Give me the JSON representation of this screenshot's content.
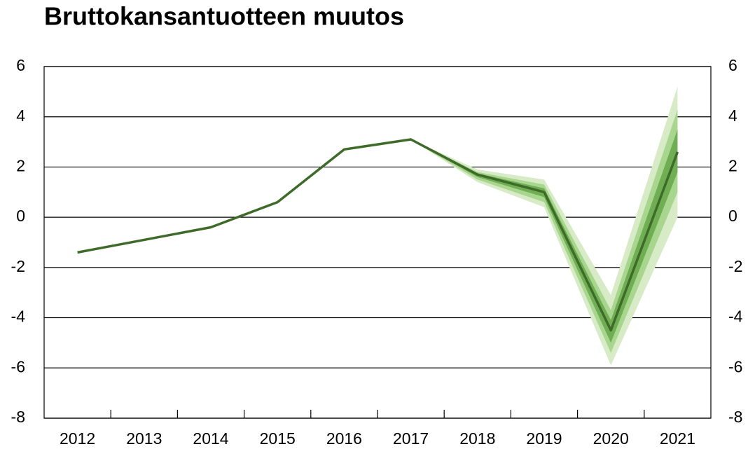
{
  "chart_data": {
    "type": "line",
    "title": "Bruttokansantuotteen muutos",
    "categories": [
      "2012",
      "2013",
      "2014",
      "2015",
      "2016",
      "2017",
      "2018",
      "2019",
      "2020",
      "2021"
    ],
    "series": [
      {
        "color": "#3f6b2a",
        "values": [
          -1.4,
          -0.9,
          -0.4,
          0.6,
          2.7,
          3.1,
          1.7,
          1.0,
          -4.5,
          2.6
        ]
      }
    ],
    "bands": [
      {
        "color": "#d6ebc6",
        "lower": [
          null,
          null,
          null,
          null,
          null,
          3.1,
          1.4,
          0.4,
          -5.9,
          0.0
        ],
        "upper": [
          null,
          null,
          null,
          null,
          null,
          3.1,
          1.9,
          1.5,
          -3.1,
          5.2
        ]
      },
      {
        "color": "#a9d68f",
        "lower": [
          null,
          null,
          null,
          null,
          null,
          3.1,
          1.5,
          0.6,
          -5.4,
          1.0
        ],
        "upper": [
          null,
          null,
          null,
          null,
          null,
          3.1,
          1.8,
          1.3,
          -3.7,
          4.3
        ]
      },
      {
        "color": "#6fae52",
        "lower": [
          null,
          null,
          null,
          null,
          null,
          3.1,
          1.6,
          0.8,
          -5.0,
          1.8
        ],
        "upper": [
          null,
          null,
          null,
          null,
          null,
          3.1,
          1.75,
          1.15,
          -4.1,
          3.5
        ]
      }
    ],
    "ylim": [
      -8,
      6
    ],
    "yticks": [
      -8,
      -6,
      -4,
      -2,
      0,
      2,
      4,
      6
    ],
    "y2lim": [
      -8,
      6
    ],
    "y2ticks": [
      -8,
      -6,
      -4,
      -2,
      0,
      2,
      4,
      6
    ],
    "grid": true
  }
}
